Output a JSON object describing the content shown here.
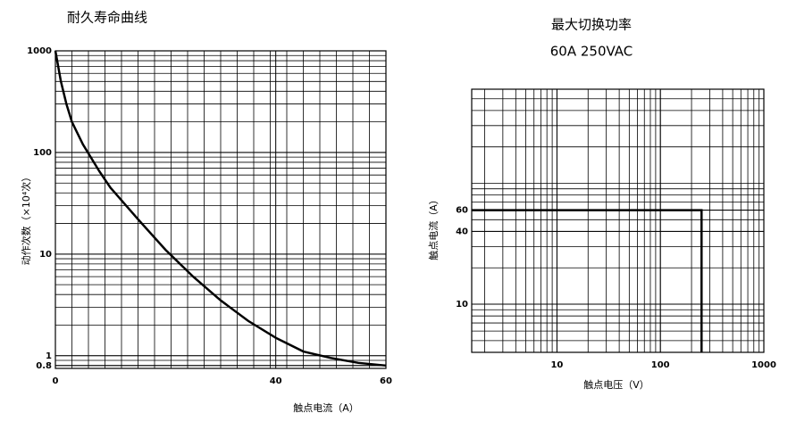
{
  "chart_data": [
    {
      "type": "line",
      "title": "耐久寿命曲线",
      "y_label": "动作次数（×10⁴次）",
      "x_label": "触点电流（A）",
      "x": [
        0,
        1,
        2,
        3,
        5,
        8,
        10,
        15,
        20,
        25,
        30,
        35,
        40,
        45,
        50,
        55,
        60
      ],
      "series": [
        {
          "color": "#000000",
          "values": [
            1000,
            500,
            300,
            200,
            120,
            65,
            45,
            22,
            11,
            6,
            3.5,
            2.2,
            1.5,
            1.1,
            0.95,
            0.85,
            0.8
          ]
        }
      ],
      "xlim": [
        0,
        60
      ],
      "xticks": [
        0,
        40,
        60
      ],
      "ylim": [
        0.75,
        1000
      ],
      "yticks": [
        0.8,
        1,
        10,
        100,
        1000
      ],
      "ylog": true,
      "xlog": false,
      "grid": true
    },
    {
      "type": "line",
      "title": "最大切换功率",
      "subtitle": "60A 250VAC",
      "y_label": "触点电流（A）",
      "x_label": "触点电压（V）",
      "x": [
        1.5,
        250,
        250
      ],
      "series": [
        {
          "color": "#000000",
          "values": [
            60,
            60,
            4
          ]
        }
      ],
      "xlim": [
        1.5,
        1000
      ],
      "xticks": [
        10,
        100,
        1000
      ],
      "ylim": [
        4,
        600
      ],
      "yticks": [
        10,
        40,
        60
      ],
      "ylog": true,
      "xlog": true,
      "grid": true
    }
  ]
}
